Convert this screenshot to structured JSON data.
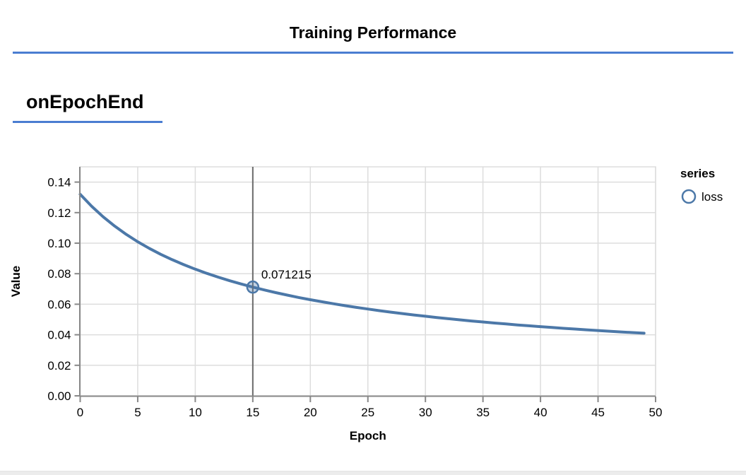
{
  "panel": {
    "title": "Training Performance",
    "section_title": "onEpochEnd",
    "accent_color": "#4a7dd1"
  },
  "chart_data": {
    "type": "line",
    "title": "",
    "xlabel": "Epoch",
    "ylabel": "Value",
    "xlim": [
      0,
      50
    ],
    "ylim": [
      0,
      0.15
    ],
    "x_ticks": [
      0,
      5,
      10,
      15,
      20,
      25,
      30,
      35,
      40,
      45,
      50
    ],
    "y_ticks": [
      0,
      0.02,
      0.04,
      0.06,
      0.08,
      0.1,
      0.12,
      0.14
    ],
    "grid": true,
    "colors": {
      "grid": "#dddddd",
      "axis": "#888888",
      "text": "#000000",
      "border": "#dddddd"
    },
    "legend": {
      "title": "series",
      "position": "top-right",
      "entries": [
        {
          "label": "loss",
          "color": "#4c78a8",
          "symbol": "circle"
        }
      ]
    },
    "series": [
      {
        "name": "loss",
        "color": "#4c78a8",
        "x": [
          0,
          1,
          2,
          3,
          4,
          5,
          6,
          7,
          8,
          9,
          10,
          11,
          12,
          13,
          14,
          15,
          16,
          17,
          18,
          19,
          20,
          21,
          22,
          23,
          24,
          25,
          26,
          27,
          28,
          29,
          30,
          31,
          32,
          33,
          34,
          35,
          36,
          37,
          38,
          39,
          40,
          41,
          42,
          43,
          44,
          45,
          46,
          47,
          48,
          49
        ],
        "values": [
          0.132009,
          0.12411,
          0.117214,
          0.111142,
          0.105754,
          0.10094,
          0.096614,
          0.092705,
          0.089155,
          0.085918,
          0.082953,
          0.080227,
          0.077714,
          0.075388,
          0.07323,
          0.071215,
          0.069349,
          0.067598,
          0.065957,
          0.064416,
          0.062967,
          0.061601,
          0.060311,
          0.059092,
          0.057937,
          0.056842,
          0.055802,
          0.054813,
          0.053871,
          0.052974,
          0.052117,
          0.051299,
          0.050516,
          0.049767,
          0.04905,
          0.048362,
          0.047701,
          0.047067,
          0.046457,
          0.04587,
          0.045305,
          0.04476,
          0.044235,
          0.043729,
          0.04324,
          0.042768,
          0.042312,
          0.04187,
          0.041443,
          0.04103
        ]
      }
    ],
    "highlight": {
      "epoch": 15,
      "value": 0.071215,
      "label": "0.071215",
      "rule_color": "#6b6b6b"
    }
  }
}
